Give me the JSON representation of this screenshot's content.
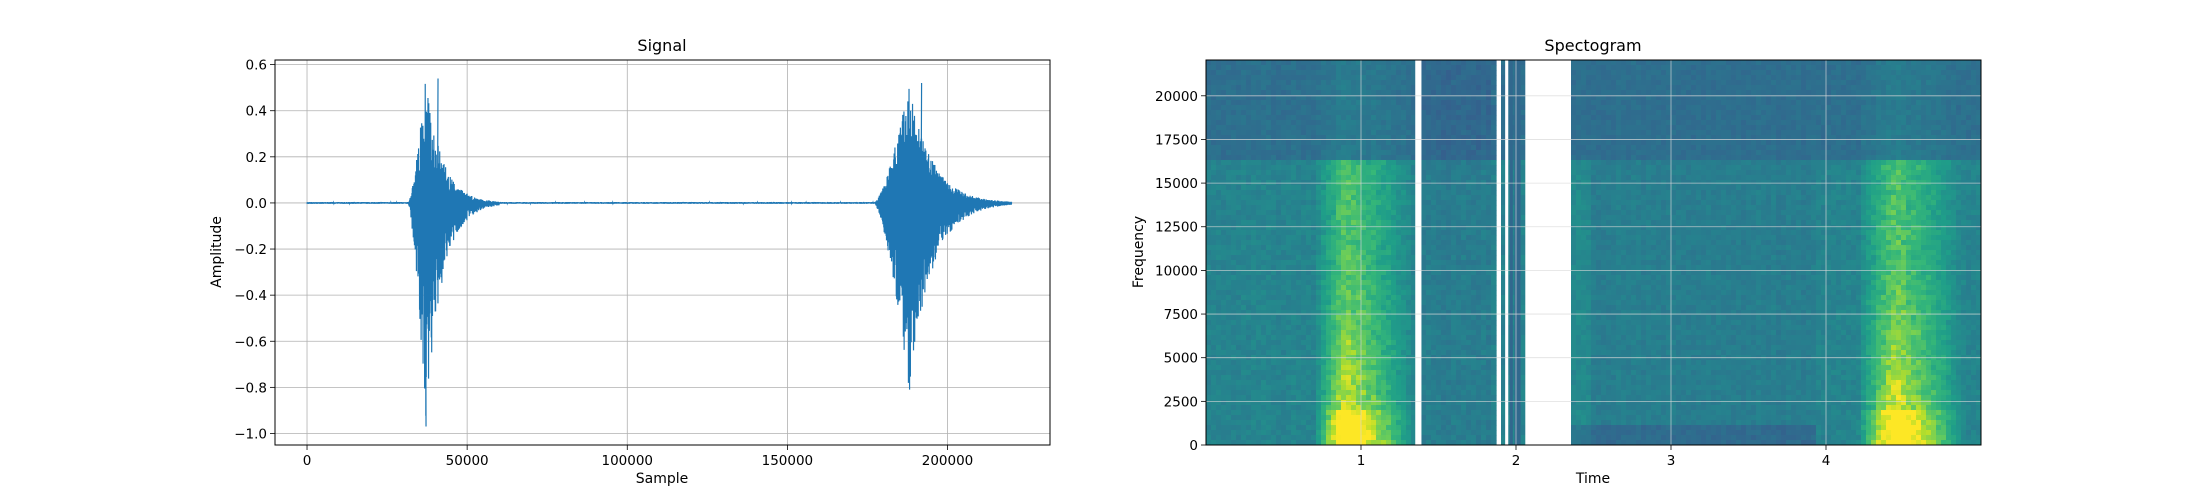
{
  "chart_data": [
    {
      "type": "line",
      "title": "Signal",
      "xlabel": "Sample",
      "ylabel": "Amplitude",
      "xlim": [
        -10000,
        232000
      ],
      "ylim": [
        -1.05,
        0.62
      ],
      "xticks": [
        0,
        50000,
        100000,
        150000,
        200000
      ],
      "xtick_labels": [
        "0",
        "50000",
        "100000",
        "150000",
        "200000"
      ],
      "yticks": [
        -1.0,
        -0.8,
        -0.6,
        -0.4,
        -0.2,
        0.0,
        0.2,
        0.4,
        0.6
      ],
      "ytick_labels": [
        "−1.0",
        "−0.8",
        "−0.6",
        "−0.4",
        "−0.2",
        "0.0",
        "0.2",
        "0.4",
        "0.6"
      ],
      "grid": true,
      "color": "#1f77b4",
      "x_range": [
        0,
        220000
      ],
      "events": [
        {
          "start": 31500,
          "end": 60000,
          "peak_max": 0.54,
          "peak_min": -0.97,
          "peak_at": 37000
        },
        {
          "start": 177000,
          "end": 220000,
          "peak_max": 0.52,
          "peak_min": -0.81,
          "peak_at": 188000
        }
      ]
    },
    {
      "type": "heatmap",
      "title": "Spectogram",
      "xlabel": "Time",
      "ylabel": "Frequency",
      "xlim": [
        0,
        5.0
      ],
      "ylim": [
        0,
        22050
      ],
      "xticks": [
        1,
        2,
        3,
        4
      ],
      "xtick_labels": [
        "1",
        "2",
        "3",
        "4"
      ],
      "yticks": [
        0,
        2500,
        5000,
        7500,
        10000,
        12500,
        15000,
        17500,
        20000
      ],
      "ytick_labels": [
        "0",
        "2500",
        "5000",
        "7500",
        "10000",
        "12500",
        "15000",
        "17500",
        "20000"
      ],
      "grid": true,
      "colormap": "viridis",
      "gaps": [
        [
          1.35,
          1.39
        ],
        [
          1.88,
          1.9
        ],
        [
          1.93,
          1.95
        ],
        [
          2.06,
          2.34
        ]
      ],
      "thin_lines": [
        1.97,
        2.0,
        2.02
      ]
    }
  ]
}
